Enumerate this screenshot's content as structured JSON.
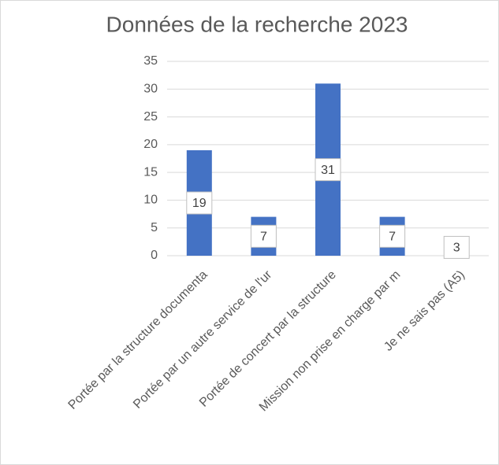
{
  "chart_data": {
    "type": "bar",
    "title": "Données de la recherche 2023",
    "categories": [
      "Portée par la structure documenta",
      "Portée par un autre service de l'ur",
      "Portée de concert par la structure",
      "Mission non prise en charge par m",
      "Je ne sais pas (A5)"
    ],
    "values": [
      19,
      7,
      31,
      7,
      3
    ],
    "color": "#4472c4",
    "ylim": [
      0,
      35
    ],
    "yticks": [
      0,
      5,
      10,
      15,
      20,
      25,
      30,
      35
    ],
    "grid": true
  }
}
